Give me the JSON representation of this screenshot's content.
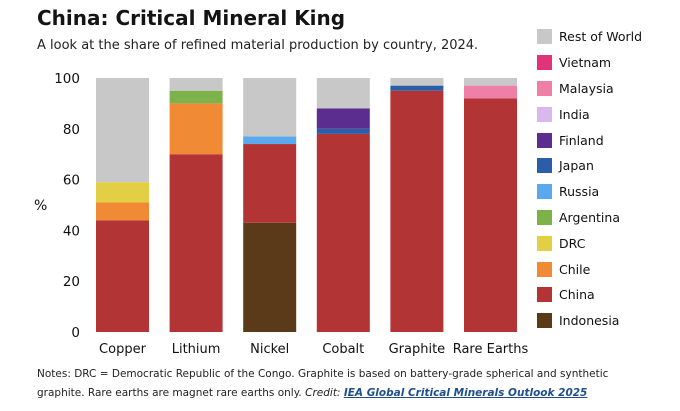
{
  "header": {
    "title": "China: Critical Mineral King",
    "subtitle": "A look at the share of refined material production by country, 2024."
  },
  "notes": {
    "text": "Notes: DRC = Democratic Republic of the Congo. Graphite is based on battery-grade spherical and synthetic graphite. Rare earths are magnet rare earths only.",
    "credit_label": "Credit:",
    "credit_source": "IEA Global Critical Minerals Outlook 2025"
  },
  "chart_data": {
    "type": "bar",
    "stacked": true,
    "title": "China: Critical Mineral King",
    "subtitle": "A look at the share of refined material production by country, 2024.",
    "ylabel": "%",
    "xlabel": "",
    "ylim": [
      0,
      100
    ],
    "yticks": [
      0,
      20,
      40,
      60,
      80,
      100
    ],
    "grid": false,
    "legend_position": "right",
    "categories": [
      "Copper",
      "Lithium",
      "Nickel",
      "Cobalt",
      "Graphite",
      "Rare Earths"
    ],
    "series": [
      {
        "name": "Indonesia",
        "color": "#5b3a1a",
        "values": [
          0,
          0,
          43,
          0,
          0,
          0
        ]
      },
      {
        "name": "China",
        "color": "#b23434",
        "values": [
          44,
          70,
          31,
          78,
          95,
          92
        ]
      },
      {
        "name": "Chile",
        "color": "#f08a35",
        "values": [
          7,
          20,
          0,
          0,
          0,
          0
        ]
      },
      {
        "name": "DRC",
        "color": "#e3cf45",
        "values": [
          8,
          0,
          0,
          0,
          0,
          0
        ]
      },
      {
        "name": "Argentina",
        "color": "#7db24b",
        "values": [
          0,
          5,
          0,
          0,
          0,
          0
        ]
      },
      {
        "name": "Russia",
        "color": "#5aa9ee",
        "values": [
          0,
          0,
          3,
          0,
          0,
          0
        ]
      },
      {
        "name": "Japan",
        "color": "#2a5fa8",
        "values": [
          0,
          0,
          0,
          2,
          2,
          0
        ]
      },
      {
        "name": "Finland",
        "color": "#5a2d8f",
        "values": [
          0,
          0,
          0,
          8,
          0,
          0
        ]
      },
      {
        "name": "India",
        "color": "#d9b8ee",
        "values": [
          0,
          0,
          0,
          0,
          0,
          0
        ]
      },
      {
        "name": "Malaysia",
        "color": "#ef7fa6",
        "values": [
          0,
          0,
          0,
          0,
          0,
          5
        ]
      },
      {
        "name": "Vietnam",
        "color": "#e0337a",
        "values": [
          0,
          0,
          0,
          0,
          0,
          0
        ]
      },
      {
        "name": "Rest of World",
        "color": "#c8c8c8",
        "values": [
          41,
          5,
          23,
          12,
          3,
          3
        ]
      }
    ]
  }
}
